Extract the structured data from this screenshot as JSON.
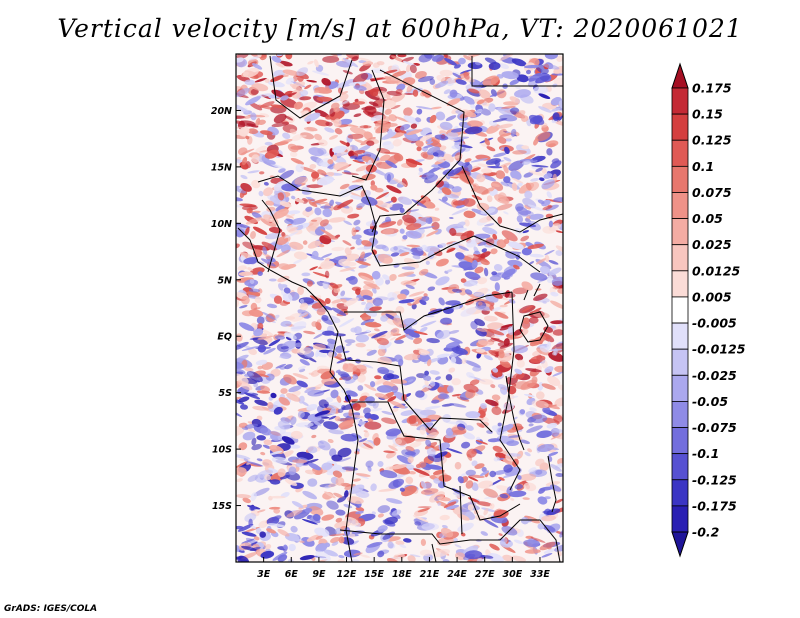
{
  "title": "Vertical velocity [m/s] at 600hPa, VT: 2020061021",
  "footer": "GrADS: IGES/COLA",
  "map": {
    "lon_range": [
      0,
      35.5
    ],
    "lat_range": [
      -20,
      25
    ],
    "lat_ticks": [
      {
        "value": 20,
        "label": "20N"
      },
      {
        "value": 15,
        "label": "15N"
      },
      {
        "value": 10,
        "label": "10N"
      },
      {
        "value": 5,
        "label": "5N"
      },
      {
        "value": 0,
        "label": "EQ"
      },
      {
        "value": -5,
        "label": "5S"
      },
      {
        "value": -10,
        "label": "10S"
      },
      {
        "value": -15,
        "label": "15S"
      }
    ],
    "lon_ticks": [
      {
        "value": 3,
        "label": "3E"
      },
      {
        "value": 6,
        "label": "6E"
      },
      {
        "value": 9,
        "label": "9E"
      },
      {
        "value": 12,
        "label": "12E"
      },
      {
        "value": 15,
        "label": "15E"
      },
      {
        "value": 18,
        "label": "18E"
      },
      {
        "value": 21,
        "label": "21E"
      },
      {
        "value": 24,
        "label": "24E"
      },
      {
        "value": 27,
        "label": "27E"
      },
      {
        "value": 30,
        "label": "30E"
      },
      {
        "value": 33,
        "label": "33E"
      }
    ]
  },
  "colorbar": {
    "levels": [
      {
        "label": "0.175",
        "color": "#b2182b"
      },
      {
        "label": "0.15",
        "color": "#c42a35"
      },
      {
        "label": "0.125",
        "color": "#d43f3f"
      },
      {
        "label": "0.1",
        "color": "#e05a55"
      },
      {
        "label": "0.075",
        "color": "#e7776d"
      },
      {
        "label": "0.05",
        "color": "#ef9288"
      },
      {
        "label": "0.025",
        "color": "#f4aca3"
      },
      {
        "label": "0.0125",
        "color": "#f8c6bf"
      },
      {
        "label": "0.005",
        "color": "#fbdcd7"
      },
      {
        "label": "-0.005",
        "color": "#ffffff"
      },
      {
        "label": "-0.0125",
        "color": "#e1e0fa"
      },
      {
        "label": "-0.025",
        "color": "#c6c4f4"
      },
      {
        "label": "-0.05",
        "color": "#aba8ee"
      },
      {
        "label": "-0.075",
        "color": "#8f8be6"
      },
      {
        "label": "-0.1",
        "color": "#736edd"
      },
      {
        "label": "-0.125",
        "color": "#5751d2"
      },
      {
        "label": "-0.175",
        "color": "#3b35c4"
      },
      {
        "label": "-0.2",
        "color": "#2a1fb3"
      }
    ],
    "top_arrow_color": "#a50f23",
    "bottom_arrow_color": "#1f1599"
  }
}
